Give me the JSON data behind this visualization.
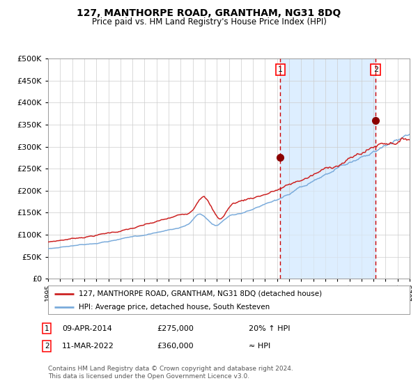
{
  "title": "127, MANTHORPE ROAD, GRANTHAM, NG31 8DQ",
  "subtitle": "Price paid vs. HM Land Registry's House Price Index (HPI)",
  "legend_line1": "127, MANTHORPE ROAD, GRANTHAM, NG31 8DQ (detached house)",
  "legend_line2": "HPI: Average price, detached house, South Kesteven",
  "annotation1_date": "09-APR-2014",
  "annotation1_price": "£275,000",
  "annotation1_hpi": "20% ↑ HPI",
  "annotation1_year": 2014.27,
  "annotation1_value": 275000,
  "annotation2_date": "11-MAR-2022",
  "annotation2_price": "£360,000",
  "annotation2_hpi": "≈ HPI",
  "annotation2_year": 2022.19,
  "annotation2_value": 360000,
  "footer": "Contains HM Land Registry data © Crown copyright and database right 2024.\nThis data is licensed under the Open Government Licence v3.0.",
  "hpi_line_color": "#7aabdb",
  "price_line_color": "#cc2222",
  "dot_color": "#8b0000",
  "vline_color": "#cc0000",
  "background_color": "#FFFFFF",
  "plot_bg_color": "#FFFFFF",
  "shade_color": "#ddeeff",
  "grid_color": "#cccccc",
  "ylim": [
    0,
    500000
  ],
  "yticks": [
    0,
    50000,
    100000,
    150000,
    200000,
    250000,
    300000,
    350000,
    400000,
    450000,
    500000
  ],
  "xstart": 1995,
  "xend": 2025
}
